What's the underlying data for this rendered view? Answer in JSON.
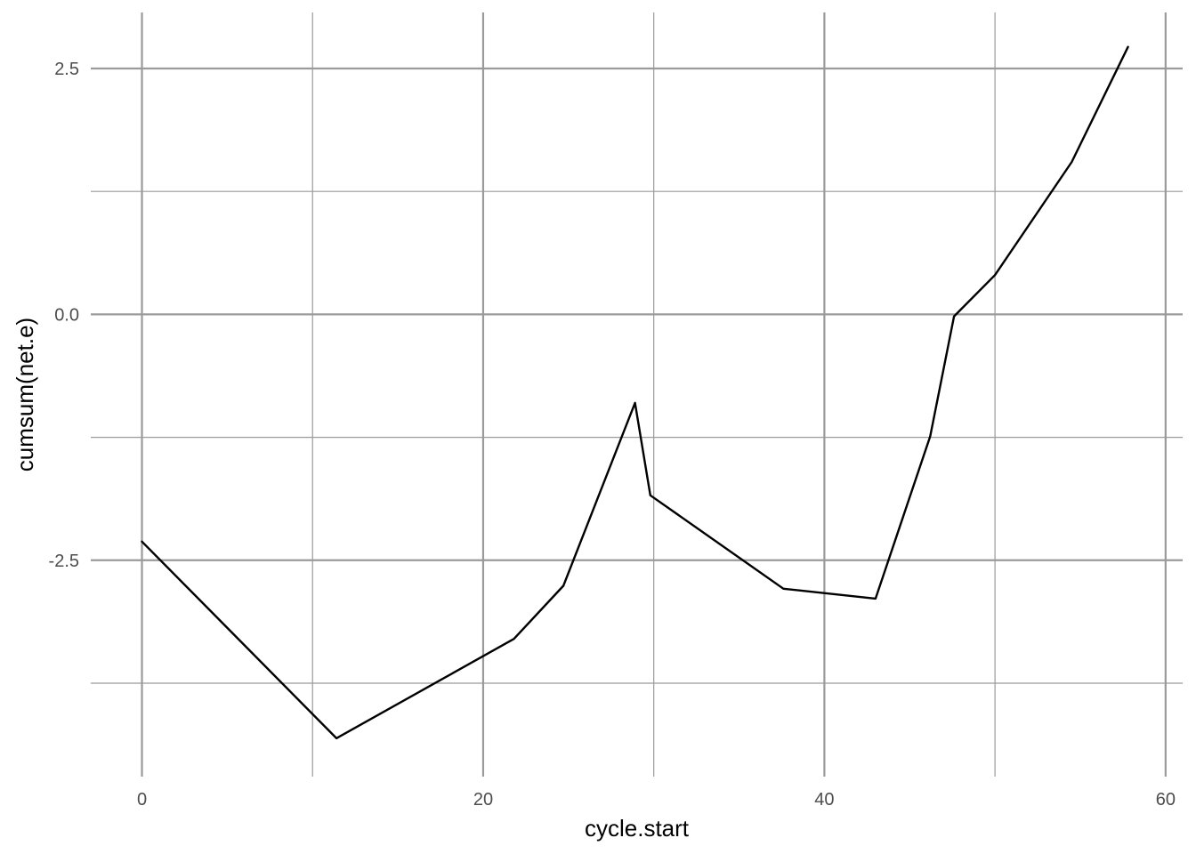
{
  "chart_data": {
    "type": "line",
    "title": "",
    "xlabel": "cycle.start",
    "ylabel": "cumsum(net.e)",
    "xlim": [
      -3,
      61
    ],
    "ylim": [
      -4.7,
      3.07
    ],
    "x_ticks": [
      0,
      20,
      40,
      60
    ],
    "x_tick_labels": [
      "0",
      "20",
      "40",
      "60"
    ],
    "x_minor_ticks": [
      10,
      30,
      50
    ],
    "y_ticks": [
      -2.5,
      0,
      2.5
    ],
    "y_tick_labels": [
      "-2.5",
      "0.0",
      "2.5"
    ],
    "y_minor_ticks": [
      -3.75,
      -1.25,
      1.25
    ],
    "grid": true,
    "legend": "none",
    "colors": {
      "line": "#000000",
      "grid": "#9a9a9a",
      "tick_text": "#4d4d4d",
      "title_text": "#000000",
      "background": "#ffffff"
    },
    "series": [
      {
        "x": [
          0,
          11.4,
          21.8,
          24.7,
          28.9,
          29.8,
          37.6,
          43.0,
          46.2,
          47.6,
          50.0,
          54.5,
          57.8
        ],
        "y": [
          -2.31,
          -4.31,
          -3.3,
          -2.76,
          -0.9,
          -1.84,
          -2.79,
          -2.89,
          -1.24,
          -0.02,
          0.4,
          1.55,
          2.72
        ]
      }
    ]
  }
}
